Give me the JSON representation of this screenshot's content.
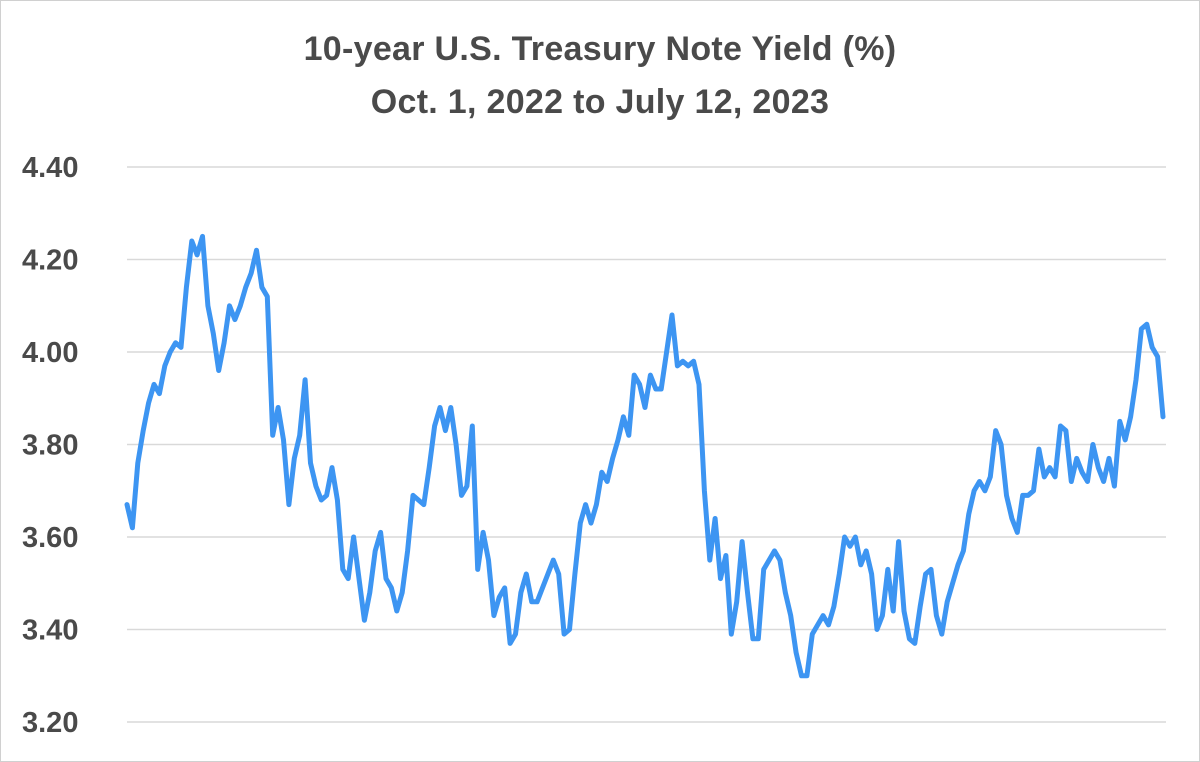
{
  "chart_data": {
    "type": "line",
    "title": "10-year U.S. Treasury Note Yield (%)",
    "subtitle": "Oct. 1, 2022 to July 12, 2023",
    "xlabel": "",
    "ylabel": "",
    "ylim": [
      3.2,
      4.4
    ],
    "yticks": [
      "4.40",
      "4.20",
      "4.00",
      "3.80",
      "3.60",
      "3.40",
      "3.20"
    ],
    "ytick_values": [
      4.4,
      4.2,
      4.0,
      3.8,
      3.6,
      3.4,
      3.2
    ],
    "grid": "horizontal",
    "line_color": "#3d95f2",
    "series": [
      {
        "values": [
          3.67,
          3.62,
          3.76,
          3.83,
          3.89,
          3.93,
          3.91,
          3.97,
          4.0,
          4.02,
          4.01,
          4.14,
          4.24,
          4.21,
          4.25,
          4.1,
          4.04,
          3.96,
          4.02,
          4.1,
          4.07,
          4.1,
          4.14,
          4.17,
          4.22,
          4.14,
          4.12,
          3.82,
          3.88,
          3.81,
          3.67,
          3.77,
          3.82,
          3.94,
          3.76,
          3.71,
          3.68,
          3.69,
          3.75,
          3.68,
          3.53,
          3.51,
          3.6,
          3.51,
          3.42,
          3.48,
          3.57,
          3.61,
          3.51,
          3.49,
          3.44,
          3.48,
          3.57,
          3.69,
          3.68,
          3.67,
          3.75,
          3.84,
          3.88,
          3.83,
          3.88,
          3.8,
          3.69,
          3.71,
          3.84,
          3.53,
          3.61,
          3.55,
          3.43,
          3.47,
          3.49,
          3.37,
          3.39,
          3.48,
          3.52,
          3.46,
          3.46,
          3.49,
          3.52,
          3.55,
          3.52,
          3.39,
          3.4,
          3.52,
          3.63,
          3.67,
          3.63,
          3.67,
          3.74,
          3.72,
          3.77,
          3.81,
          3.86,
          3.82,
          3.95,
          3.93,
          3.88,
          3.95,
          3.92,
          3.92,
          4.0,
          4.08,
          3.97,
          3.98,
          3.97,
          3.98,
          3.93,
          3.7,
          3.55,
          3.64,
          3.51,
          3.56,
          3.39,
          3.46,
          3.59,
          3.48,
          3.38,
          3.38,
          3.53,
          3.55,
          3.57,
          3.55,
          3.48,
          3.43,
          3.35,
          3.3,
          3.3,
          3.39,
          3.41,
          3.43,
          3.41,
          3.45,
          3.52,
          3.6,
          3.58,
          3.6,
          3.54,
          3.57,
          3.52,
          3.4,
          3.43,
          3.53,
          3.44,
          3.59,
          3.44,
          3.38,
          3.37,
          3.45,
          3.52,
          3.53,
          3.43,
          3.39,
          3.46,
          3.5,
          3.54,
          3.57,
          3.65,
          3.7,
          3.72,
          3.7,
          3.73,
          3.83,
          3.8,
          3.69,
          3.64,
          3.61,
          3.69,
          3.69,
          3.7,
          3.79,
          3.73,
          3.75,
          3.73,
          3.84,
          3.83,
          3.72,
          3.77,
          3.74,
          3.72,
          3.8,
          3.75,
          3.72,
          3.77,
          3.71,
          3.85,
          3.81,
          3.86,
          3.94,
          4.05,
          4.06,
          4.01,
          3.99,
          3.86
        ]
      }
    ]
  }
}
